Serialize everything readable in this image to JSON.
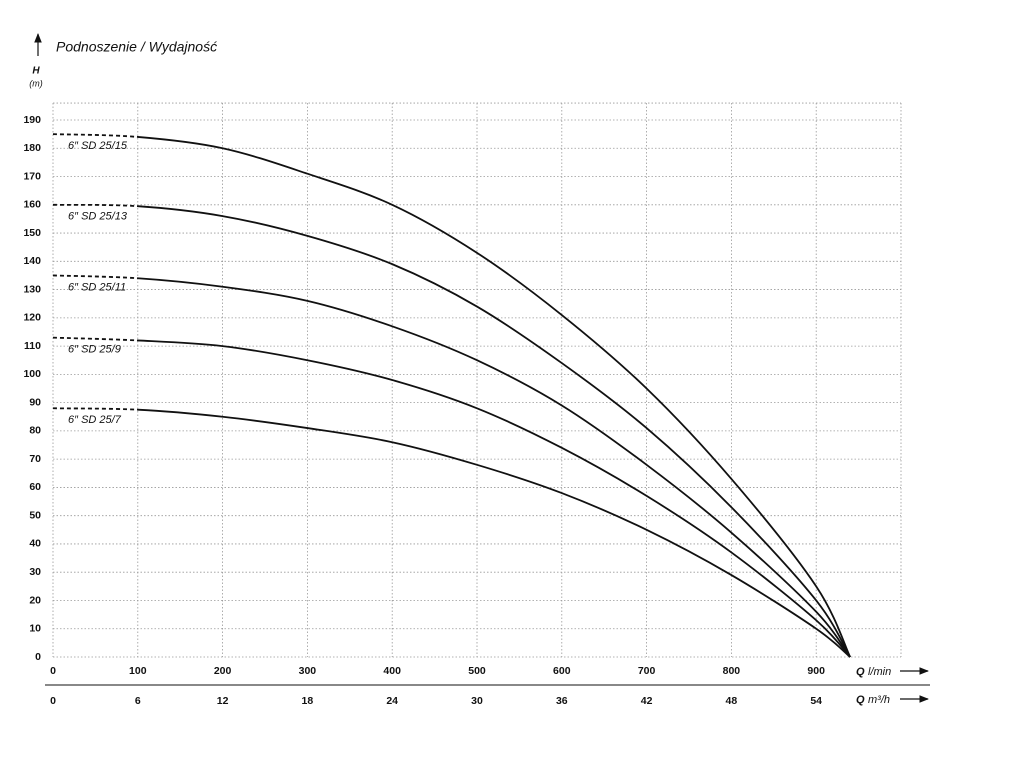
{
  "chart_data": {
    "type": "line",
    "title": "Podnoszenie / Wydajność",
    "ylabel": {
      "symbol": "H",
      "unit": "(m)"
    },
    "xlabel": {
      "symbol": "Q",
      "unit": "l/min"
    },
    "x2label": {
      "symbol": "Q",
      "unit": "m³/h"
    },
    "xlim": [
      0,
      1000
    ],
    "xticks": [
      0,
      100,
      200,
      300,
      400,
      500,
      600,
      700,
      800,
      900
    ],
    "x2lim": [
      0,
      60
    ],
    "x2ticks": [
      0,
      6,
      12,
      18,
      24,
      30,
      36,
      42,
      48,
      54
    ],
    "ylim": [
      0,
      196
    ],
    "yticks": [
      0,
      10,
      20,
      30,
      40,
      50,
      60,
      70,
      80,
      90,
      100,
      110,
      120,
      130,
      140,
      150,
      160,
      170,
      180,
      190
    ],
    "grid": true,
    "dashed_range": [
      0,
      100
    ],
    "x": [
      0,
      100,
      200,
      300,
      400,
      500,
      600,
      700,
      800,
      900,
      940
    ],
    "series": [
      {
        "name": "6″ SD 25/15",
        "color": "#111111",
        "values": [
          185,
          184,
          180,
          171,
          160,
          143,
          121,
          95,
          63,
          25,
          0
        ]
      },
      {
        "name": "6″ SD 25/13",
        "color": "#111111",
        "values": [
          160,
          159.5,
          156,
          149,
          139,
          124,
          104,
          81,
          53,
          20,
          0
        ]
      },
      {
        "name": "6″ SD 25/11",
        "color": "#111111",
        "values": [
          135,
          134,
          131,
          126,
          117,
          105,
          89,
          68,
          44,
          16,
          0
        ]
      },
      {
        "name": "6″ SD 25/9",
        "color": "#111111",
        "values": [
          113,
          112,
          110,
          105,
          98,
          88,
          74,
          57,
          37,
          13,
          0
        ]
      },
      {
        "name": "6″ SD 25/7",
        "color": "#111111",
        "values": [
          88,
          87.5,
          85,
          81,
          76,
          68,
          58,
          45,
          29,
          10,
          0
        ]
      }
    ]
  }
}
